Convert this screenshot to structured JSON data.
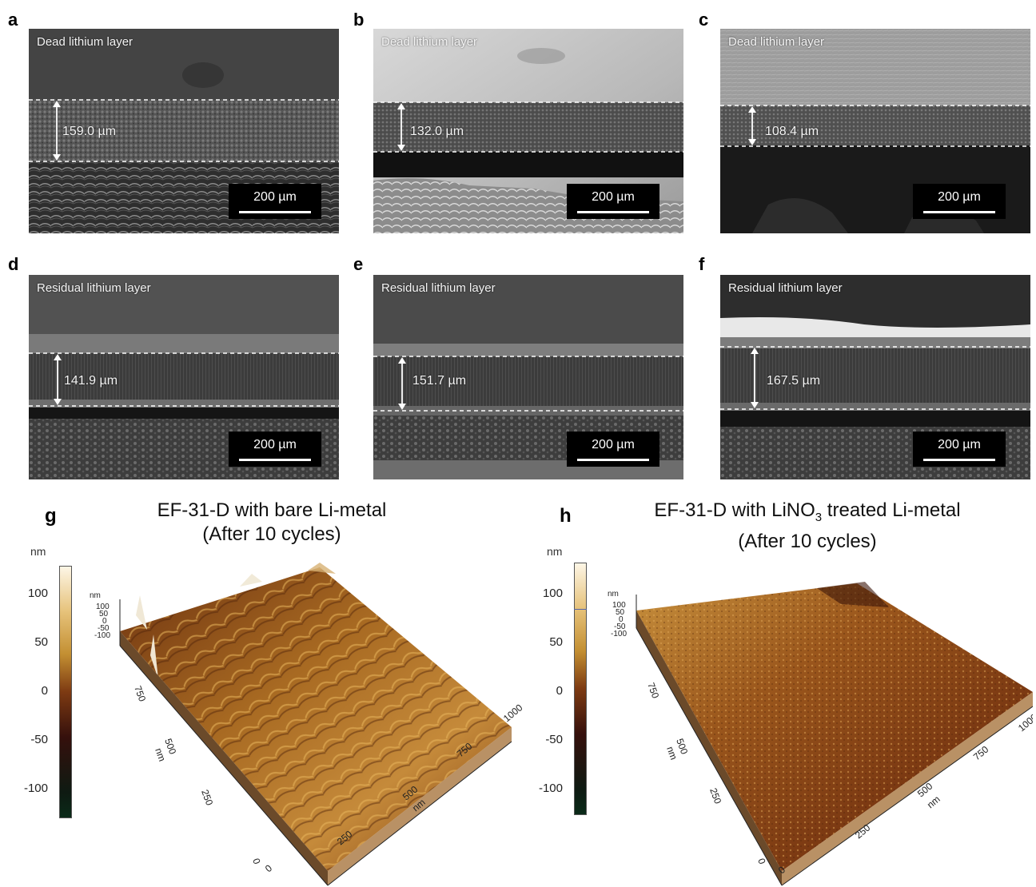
{
  "figure": {
    "sem_panels": [
      {
        "letter": "a",
        "label": "Dead lithium layer",
        "thickness": "159.0 µm",
        "scale": "200 µm"
      },
      {
        "letter": "b",
        "label": "Dead lithium layer",
        "thickness": "132.0 µm",
        "scale": "200 µm"
      },
      {
        "letter": "c",
        "label": "Dead lithium layer",
        "thickness": "108.4 µm",
        "scale": "200 µm"
      },
      {
        "letter": "d",
        "label": "Residual lithium layer",
        "thickness": "141.9 µm",
        "scale": "200 µm"
      },
      {
        "letter": "e",
        "label": "Residual lithium layer",
        "thickness": "151.7 µm",
        "scale": "200 µm"
      },
      {
        "letter": "f",
        "label": "Residual lithium layer",
        "thickness": "167.5 µm",
        "scale": "200 µm"
      }
    ],
    "afm_panels": [
      {
        "letter": "g",
        "title_line1": "EF-31-D with bare Li-metal",
        "title_line2": "(After 10 cycles)"
      },
      {
        "letter": "h",
        "title_pre": "EF-31-D with LiNO",
        "title_sub": "3",
        "title_post": " treated Li-metal",
        "title_line2": "(After 10 cycles)"
      }
    ],
    "colorbar": {
      "unit": "nm",
      "ticks": [
        "100",
        "50",
        "0",
        "-50",
        "-100"
      ],
      "colors": [
        "#fdf6e6",
        "#c38f32",
        "#7d3a12",
        "#35100c",
        "#0e1a12"
      ]
    },
    "afm_axes": {
      "z_unit": "nm",
      "z_ticks": [
        "100",
        "50",
        "0",
        "-50",
        "-100"
      ],
      "y_ticks": [
        "750",
        "500",
        "250",
        "0"
      ],
      "y_unit": "nm",
      "x_ticks": [
        "0",
        "250",
        "500",
        "750",
        "1000"
      ],
      "x_unit": "nm"
    },
    "colors": {
      "sem_dark": "#2a2a2a",
      "sem_mid": "#5a5a5a",
      "afm_surface": "#a5651f",
      "afm_highlight": "#e8b65c",
      "afm_shadow": "#4e2208"
    }
  }
}
